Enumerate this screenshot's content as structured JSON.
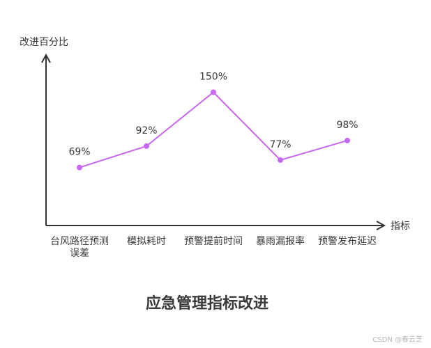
{
  "chart_data": {
    "type": "line",
    "title": "应急管理指标改进",
    "xlabel": "指标",
    "ylabel": "改进百分比",
    "categories": [
      "台风路径预测误差",
      "模拟耗时",
      "预警提前时间",
      "暴雨漏报率",
      "预警发布延迟"
    ],
    "values": [
      69,
      92,
      150,
      77,
      98
    ],
    "data_labels": [
      "69%",
      "92%",
      "150%",
      "77%",
      "98%"
    ],
    "grid": false,
    "legend": "none"
  },
  "colors": {
    "line": "#c867f2",
    "axis": "#333333",
    "text": "#3a3a3a"
  },
  "watermark": "CSDN @春云芝"
}
